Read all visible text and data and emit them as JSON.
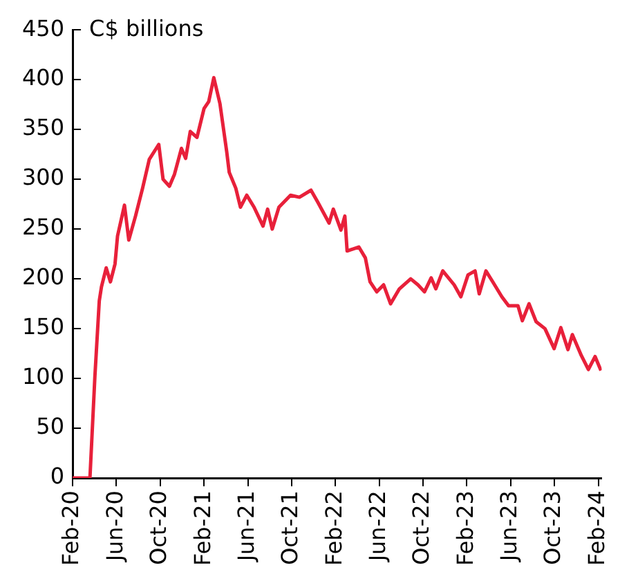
{
  "chart_data": {
    "type": "line",
    "annotations": [
      "C$ billions"
    ],
    "x": [
      "2020-02-01",
      "2020-03-19",
      "2020-04-02",
      "2020-04-14",
      "2020-04-20",
      "2020-05-03",
      "2020-05-15",
      "2020-05-28",
      "2020-06-04",
      "2020-06-23",
      "2020-07-05",
      "2020-07-24",
      "2020-08-13",
      "2020-09-01",
      "2020-09-27",
      "2020-10-09",
      "2020-10-27",
      "2020-11-10",
      "2020-11-29",
      "2020-12-11",
      "2020-12-24",
      "2021-01-12",
      "2021-02-01",
      "2021-02-13",
      "2021-02-26",
      "2021-03-15",
      "2021-04-03",
      "2021-04-10",
      "2021-04-28",
      "2021-05-11",
      "2021-05-29",
      "2021-06-18",
      "2021-07-13",
      "2021-07-26",
      "2021-08-08",
      "2021-08-27",
      "2021-09-28",
      "2021-10-23",
      "2021-11-24",
      "2021-12-13",
      "2022-01-14",
      "2022-01-26",
      "2022-02-15",
      "2022-02-25",
      "2022-03-03",
      "2022-04-05",
      "2022-04-23",
      "2022-05-06",
      "2022-05-25",
      "2022-06-13",
      "2022-07-02",
      "2022-07-27",
      "2022-08-28",
      "2022-09-17",
      "2022-10-05",
      "2022-10-24",
      "2022-11-06",
      "2022-11-25",
      "2022-12-27",
      "2023-01-15",
      "2023-02-04",
      "2023-02-22",
      "2023-03-05",
      "2023-03-24",
      "2023-04-12",
      "2023-05-07",
      "2023-05-26",
      "2023-06-21",
      "2023-07-03",
      "2023-07-22",
      "2023-08-11",
      "2023-09-05",
      "2023-09-30",
      "2023-10-19",
      "2023-11-08",
      "2023-11-20",
      "2023-12-15",
      "2024-01-04",
      "2024-01-23",
      "2024-02-08"
    ],
    "series": [
      {
        "color": "#e8203a",
        "values": [
          0,
          0,
          102,
          178,
          192,
          211,
          197,
          215,
          243,
          274,
          239,
          263,
          291,
          320,
          335,
          300,
          293,
          305,
          331,
          321,
          348,
          342,
          371,
          378,
          402,
          376,
          328,
          307,
          291,
          272,
          284,
          272,
          253,
          270,
          250,
          272,
          284,
          282,
          289,
          277,
          256,
          270,
          249,
          263,
          228,
          232,
          221,
          197,
          187,
          194,
          175,
          190,
          200,
          194,
          187,
          201,
          190,
          208,
          194,
          182,
          204,
          208,
          185,
          208,
          197,
          182,
          173,
          173,
          158,
          175,
          157,
          150,
          130,
          151,
          129,
          144,
          123,
          109,
          122,
          108
        ]
      }
    ],
    "xlim": [
      "2020-02-01",
      "2024-02-10"
    ],
    "xticks": [
      {
        "value": "2020-02",
        "label": "Feb-20"
      },
      {
        "value": "2020-06",
        "label": "Jun-20"
      },
      {
        "value": "2020-10",
        "label": "Oct-20"
      },
      {
        "value": "2021-02",
        "label": "Feb-21"
      },
      {
        "value": "2021-06",
        "label": "Jun-21"
      },
      {
        "value": "2021-10",
        "label": "Oct-21"
      },
      {
        "value": "2022-02",
        "label": "Feb-22"
      },
      {
        "value": "2022-06",
        "label": "Jun-22"
      },
      {
        "value": "2022-10",
        "label": "Oct-22"
      },
      {
        "value": "2023-02",
        "label": "Feb-23"
      },
      {
        "value": "2023-06",
        "label": "Jun-23"
      },
      {
        "value": "2023-10",
        "label": "Oct-23"
      },
      {
        "value": "2024-02",
        "label": "Feb-24"
      }
    ],
    "ylim": [
      0,
      450
    ],
    "yticks": [
      0,
      50,
      100,
      150,
      200,
      250,
      300,
      350,
      400,
      450
    ],
    "grid": false,
    "legend": false,
    "marker": "none",
    "line_style": "solid"
  }
}
